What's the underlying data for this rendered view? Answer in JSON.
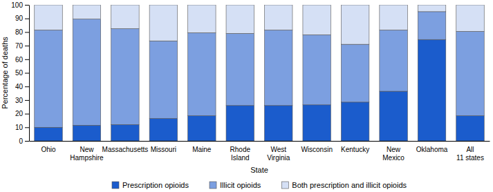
{
  "chart_data": {
    "type": "bar",
    "stacked": true,
    "x_label": "State",
    "y_label": "Percentage of deaths",
    "categories": [
      "Ohio",
      "New Hampshire",
      "Massachusetts",
      "Missouri",
      "Maine",
      "Rhode Island",
      "West Virginia",
      "Wisconsin",
      "Kentucky",
      "New Mexico",
      "Oklahoma",
      "All 11 states"
    ],
    "series": [
      {
        "name": "Prescription opioids",
        "color": "#1b5ccc",
        "values": [
          10,
          11.5,
          12,
          16.5,
          18.5,
          26,
          26,
          26.5,
          28.5,
          36.5,
          74.5,
          18.5
        ]
      },
      {
        "name": "Illicit opioids",
        "color": "#7c9fe0",
        "values": [
          71.5,
          78,
          70.5,
          57,
          61,
          53,
          55.5,
          51.5,
          42.5,
          45,
          20.5,
          62
        ]
      },
      {
        "name": "Both prescription and illicit opioids",
        "color": "#d5e0f5",
        "values": [
          18.5,
          10.5,
          17.5,
          26.5,
          20.5,
          21,
          18.5,
          22,
          29,
          18.5,
          5,
          19.5
        ]
      }
    ],
    "ylim": [
      0,
      100
    ],
    "yticks": [
      0,
      10,
      20,
      30,
      40,
      50,
      60,
      70,
      80,
      90,
      100
    ],
    "grid": false,
    "legend": "bottom"
  }
}
